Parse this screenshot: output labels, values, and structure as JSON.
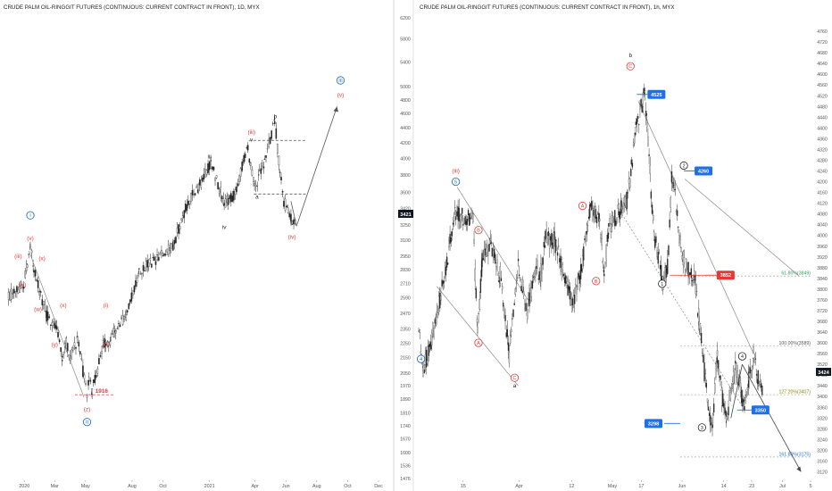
{
  "chart_data": [
    {
      "type": "line",
      "title": "CRUDE PALM OIL-RINGGIT FUTURES (CONTINUOUS: CURRENT CONTRACT IN FRONT), 1D, MYX",
      "currency": "MYR",
      "y_scale": "log",
      "ylim": [
        1476,
        6300
      ],
      "y_ticks": [
        "1476",
        "1536",
        "1600",
        "1670",
        "1740",
        "1810",
        "1890",
        "1970",
        "2050",
        "2150",
        "2250",
        "2350",
        "2470",
        "2590",
        "2710",
        "2830",
        "2950",
        "3100",
        "3250",
        "3420",
        "3600",
        "3800",
        "4000",
        "4200",
        "4400",
        "4600",
        "4800",
        "5000",
        "5400",
        "5800",
        "6200"
      ],
      "x_ticks": [
        "2020",
        "Mar",
        "May",
        "Aug",
        "Oct",
        "2021",
        "Apr",
        "Jun",
        "Aug",
        "Oct",
        "Dec"
      ],
      "last_price": "3421",
      "series": [
        {
          "type": "candlestick",
          "x": [
            "2019-12-01",
            "2019-12-31",
            "2020-01-07",
            "2020-01-13",
            "2020-01-20",
            "2020-01-31",
            "2020-02-14",
            "2020-03-05",
            "2020-03-16",
            "2020-03-24",
            "2020-04-01",
            "2020-04-15",
            "2020-05-04",
            "2020-05-08",
            "2020-05-14",
            "2020-06-05",
            "2020-06-20",
            "2020-06-30",
            "2020-07-20",
            "2020-08-15",
            "2020-09-20",
            "2020-10-21",
            "2020-11-20",
            "2020-12-10",
            "2021-01-04",
            "2021-01-30",
            "2021-02-18",
            "2021-03-10",
            "2021-03-18",
            "2021-03-31",
            "2021-04-10",
            "2021-04-20",
            "2021-05-10",
            "2021-05-20",
            "2021-05-28",
            "2021-06-11",
            "2021-06-21"
          ],
          "y": [
            2600,
            2700,
            2880,
            3020,
            2850,
            2650,
            2450,
            2380,
            2150,
            2250,
            2150,
            2280,
            1916,
            2010,
            1940,
            2240,
            2280,
            2360,
            2440,
            2820,
            2920,
            3050,
            3500,
            3650,
            3950,
            3480,
            3550,
            3980,
            4120,
            3650,
            3800,
            3950,
            4520,
            3850,
            3500,
            3320,
            3250
          ]
        }
      ],
      "wave_labels": [
        {
          "text": "I",
          "date": "2020-01-13",
          "price": 3350,
          "color": "#1565c0"
        },
        {
          "text": "(v)",
          "date": "2020-01-13",
          "price": 3120,
          "color": "#e53935"
        },
        {
          "text": "(iii)",
          "date": "2019-12-20",
          "price": 2950,
          "color": "#e53935"
        },
        {
          "text": "(iv)",
          "date": "2019-12-28",
          "price": 2700,
          "color": "#e53935"
        },
        {
          "text": "(x)",
          "date": "2020-02-05",
          "price": 2930,
          "color": "#e53935"
        },
        {
          "text": "(w)",
          "date": "2020-01-28",
          "price": 2500,
          "color": "#e53935"
        },
        {
          "text": "(x)",
          "date": "2020-03-18",
          "price": 2530,
          "color": "#e53935"
        },
        {
          "text": "(y)",
          "date": "2020-03-01",
          "price": 2240,
          "color": "#e53935"
        },
        {
          "text": "(z)",
          "date": "2020-05-04",
          "price": 1830,
          "color": "#e53935"
        },
        {
          "text": "II",
          "date": "2020-05-04",
          "price": 1760,
          "color": "#1565c0"
        },
        {
          "text": "(i)",
          "date": "2020-06-10",
          "price": 2530,
          "color": "#e53935"
        },
        {
          "text": "(ii)",
          "date": "2020-06-10",
          "price": 2240,
          "color": "#e53935"
        },
        {
          "text": "ii",
          "date": "2020-07-29",
          "price": 2560,
          "color": "#222222"
        },
        {
          "text": "iii",
          "date": "2021-01-01",
          "price": 4020,
          "color": "#222222"
        },
        {
          "text": "iv",
          "date": "2021-01-30",
          "price": 3230,
          "color": "#222222"
        },
        {
          "text": "(iii)",
          "date": "2021-03-25",
          "price": 4340,
          "color": "#e53935"
        },
        {
          "text": "v",
          "date": "2021-03-25",
          "price": 4240,
          "color": "#222222"
        },
        {
          "text": "a",
          "date": "2021-04-05",
          "price": 3550,
          "color": "#222222"
        },
        {
          "text": "b",
          "date": "2021-05-11",
          "price": 4560,
          "color": "#222222"
        },
        {
          "text": "c",
          "date": "2021-06-13",
          "price": 3270,
          "color": "#222222"
        },
        {
          "text": "(iv)",
          "date": "2021-06-13",
          "price": 3130,
          "color": "#e53935"
        },
        {
          "text": "III",
          "date": "2021-09-17",
          "price": 5100,
          "color": "#1565c0"
        },
        {
          "text": "(v)",
          "date": "2021-09-17",
          "price": 4870,
          "color": "#e53935"
        }
      ],
      "levels": [
        {
          "label": "1916",
          "price": 1916,
          "from": "2020-04-10",
          "to": "2020-06-25",
          "color": "#e53935"
        },
        {
          "label": "",
          "price": 4230,
          "from": "2021-03-20",
          "to": "2021-07-10",
          "color": "#555555"
        },
        {
          "label": "",
          "price": 3580,
          "from": "2021-03-30",
          "to": "2021-07-10",
          "color": "#555555"
        }
      ]
    },
    {
      "type": "line",
      "title": "CRUDE PALM OIL-RINGGIT FUTURES (CONTINUOUS: CURRENT CONTRACT IN FRONT), 1h, MYX",
      "currency": "MYR",
      "ylim": [
        3095,
        4830
      ],
      "y_ticks": [
        "3120",
        "3160",
        "3200",
        "3240",
        "3280",
        "3320",
        "3360",
        "3400",
        "3440",
        "3480",
        "3520",
        "3560",
        "3600",
        "3640",
        "3680",
        "3720",
        "3760",
        "3800",
        "3840",
        "3880",
        "3920",
        "3960",
        "4000",
        "4040",
        "4080",
        "4120",
        "4160",
        "4200",
        "4240",
        "4280",
        "4320",
        "4360",
        "4400",
        "4440",
        "4480",
        "4520",
        "4560",
        "4600",
        "4640",
        "4680",
        "4720",
        "4760"
      ],
      "x_ticks": [
        "15",
        "Apr",
        "12",
        "May",
        "17",
        "Jun",
        "14",
        "23",
        "Jul",
        "5"
      ],
      "last_price": "3424",
      "series": [
        {
          "type": "candlestick",
          "x": [
            0,
            1,
            2,
            4,
            6,
            8,
            12,
            13,
            14,
            16,
            18,
            20,
            22,
            23,
            24,
            26,
            27,
            28,
            30,
            34,
            36,
            38,
            40,
            41,
            42,
            46,
            47,
            48,
            50,
            52,
            54,
            55,
            56,
            58,
            60,
            61,
            62,
            64,
            65,
            66,
            67,
            68,
            70,
            72,
            73,
            74,
            75,
            76
          ],
          "y": [
            3660,
            3500,
            3560,
            3700,
            3880,
            4090,
            4050,
            3640,
            3900,
            3960,
            3850,
            3560,
            3880,
            3800,
            3720,
            3880,
            3860,
            3990,
            3980,
            3740,
            3880,
            4100,
            4050,
            3860,
            4030,
            4130,
            4250,
            4400,
            4530,
            4000,
            3830,
            3880,
            4240,
            3940,
            3860,
            3840,
            3680,
            3350,
            3300,
            3580,
            3400,
            3320,
            3520,
            3360,
            3470,
            3550,
            3470,
            3420
          ]
        }
      ],
      "wave_labels": [
        {
          "text": "(iii)",
          "x": 8.2,
          "price": 4240,
          "color": "#e53935"
        },
        {
          "text": "5",
          "x": 8.2,
          "price": 4200,
          "color": "#1565c0"
        },
        {
          "text": "B",
          "x": 13.2,
          "price": 4020,
          "color": "#e53935"
        },
        {
          "text": "A",
          "x": 13.2,
          "price": 3600,
          "color": "#e53935"
        },
        {
          "text": "4",
          "x": 0.5,
          "price": 3540,
          "color": "#1565c0"
        },
        {
          "text": "C",
          "x": 21.2,
          "price": 3470,
          "color": "#e53935"
        },
        {
          "text": "a",
          "x": 21.2,
          "price": 3440,
          "color": "#222222"
        },
        {
          "text": "A",
          "x": 36.2,
          "price": 4110,
          "color": "#e53935"
        },
        {
          "text": "B",
          "x": 39.2,
          "price": 3830,
          "color": "#e53935"
        },
        {
          "text": "C",
          "x": 46.8,
          "price": 4630,
          "color": "#e53935"
        },
        {
          "text": "b",
          "x": 46.8,
          "price": 4670,
          "color": "#222222"
        },
        {
          "text": "2",
          "x": 58.6,
          "price": 4260,
          "color": "#222222"
        },
        {
          "text": "1",
          "x": 53.8,
          "price": 3820,
          "color": "#222222"
        },
        {
          "text": "3",
          "x": 62.6,
          "price": 3285,
          "color": "#222222"
        },
        {
          "text": "4",
          "x": 71.5,
          "price": 3550,
          "color": "#222222"
        }
      ],
      "price_tags": [
        {
          "label": "4525",
          "x": 48.2,
          "price": 4525,
          "color": "#1e6fe8"
        },
        {
          "label": "4260",
          "x": 58.6,
          "price": 4240,
          "color": "#1e6fe8"
        },
        {
          "label": "3852",
          "x": 63.5,
          "price": 3852,
          "color": "#e53935"
        },
        {
          "label": "3298",
          "x": 57.8,
          "price": 3300,
          "color": "#1e6fe8"
        },
        {
          "label": "3350",
          "x": 70.4,
          "price": 3350,
          "color": "#1e6fe8"
        }
      ],
      "fib_levels": [
        {
          "label": "61.80%(3849)",
          "price": 3849
        },
        {
          "label": "100.00%(3589)",
          "price": 3589
        },
        {
          "label": "127.20%(3407)",
          "price": 3407
        },
        {
          "label": "161.80%(3175)",
          "price": 3175
        }
      ]
    }
  ]
}
